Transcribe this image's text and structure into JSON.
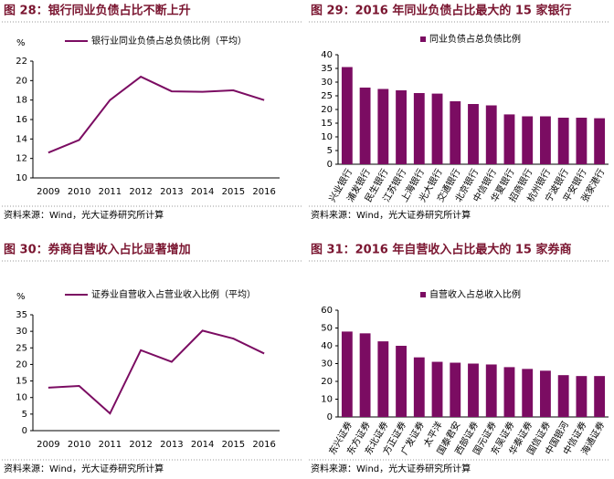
{
  "chart_data": [
    {
      "type": "line",
      "title": "图 28：银行同业负债占比不断上升",
      "y_label": "%",
      "categories": [
        "2009",
        "2010",
        "2011",
        "2012",
        "2013",
        "2014",
        "2015",
        "2016"
      ],
      "series": [
        {
          "name": "银行业同业负债占总负债比例（平均）",
          "color": "#7b0c62",
          "values": [
            12.6,
            13.9,
            18.0,
            20.4,
            18.9,
            18.85,
            19.0,
            18.0
          ]
        }
      ],
      "ylim": [
        10,
        22
      ],
      "yticks": [
        10,
        12,
        14,
        16,
        18,
        20,
        22
      ],
      "source": "资料来源：Wind，光大证券研究所计算"
    },
    {
      "type": "bar",
      "title": "图 29：2016 年同业负债占比最大的 15 家银行",
      "categories": [
        "兴业银行",
        "浦发银行",
        "民生银行",
        "江苏银行",
        "上海银行",
        "光大银行",
        "交通银行",
        "北京银行",
        "中信银行",
        "华夏银行",
        "招商银行",
        "杭州银行",
        "宁波银行",
        "平安银行",
        "张家港行"
      ],
      "series": [
        {
          "name": "同业负债占总负债比例",
          "color": "#7b0c62",
          "values": [
            35.5,
            28,
            27.5,
            27,
            26,
            25.8,
            23,
            22,
            21.5,
            18.2,
            17.5,
            17.5,
            17,
            17,
            16.8
          ]
        }
      ],
      "ylim": [
        0,
        40
      ],
      "yticks": [
        0,
        5,
        10,
        15,
        20,
        25,
        30,
        35,
        40
      ],
      "source": "资料来源：Wind，光大证券研究所计算"
    },
    {
      "type": "line",
      "title": "图 30：券商自营收入占比显著增加",
      "y_label": "%",
      "categories": [
        "2009",
        "2010",
        "2011",
        "2012",
        "2013",
        "2014",
        "2015",
        "2016"
      ],
      "series": [
        {
          "name": "证券业自营收入占营业收入比例（平均）",
          "color": "#7b0c62",
          "values": [
            13,
            13.5,
            5.2,
            24.3,
            20.8,
            30.2,
            27.8,
            23.3
          ]
        }
      ],
      "ylim": [
        0,
        35
      ],
      "yticks": [
        0,
        5,
        10,
        15,
        20,
        25,
        30,
        35
      ],
      "source": "资料来源：Wind，光大证券研究所计算"
    },
    {
      "type": "bar",
      "title": "图 31：2016 年自营收入占比最大的 15 家券商",
      "categories": [
        "东兴证券",
        "东方证券",
        "东北证券",
        "方正证券",
        "广发证券",
        "太平洋",
        "国泰君安",
        "西部证券",
        "国元证券",
        "东吴证券",
        "华泰证券",
        "国信证券",
        "中国银河",
        "中信证券",
        "海通证券"
      ],
      "series": [
        {
          "name": "自营收入占总收入比例",
          "color": "#7b0c62",
          "values": [
            48,
            47,
            42.5,
            40,
            33.5,
            31,
            30.5,
            30,
            29.5,
            28,
            27,
            26,
            23.5,
            23,
            23
          ]
        }
      ],
      "ylim": [
        0,
        60
      ],
      "yticks": [
        0,
        10,
        20,
        30,
        40,
        50,
        60
      ],
      "source": "资料来源：Wind，光大证券研究所计算"
    }
  ]
}
